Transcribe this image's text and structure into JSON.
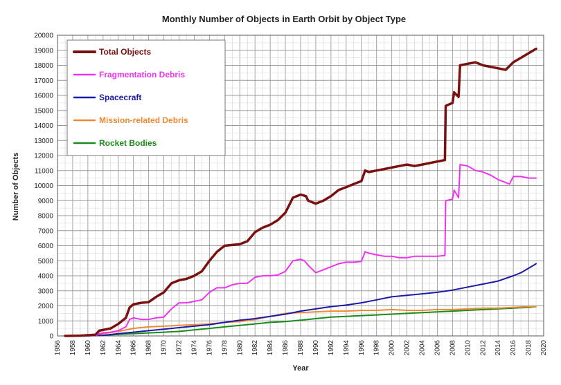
{
  "chart_data": {
    "type": "line",
    "title": "Monthly Number of Objects in Earth Orbit by Object Type",
    "xlabel": "Year",
    "ylabel": "Number of Objects",
    "xlim": [
      1956,
      2020
    ],
    "ylim": [
      0,
      20000
    ],
    "x_ticks": [
      "1956",
      "1958",
      "1960",
      "1962",
      "1964",
      "1966",
      "1968",
      "1970",
      "1972",
      "1974",
      "1976",
      "1978",
      "1980",
      "1982",
      "1984",
      "1986",
      "1988",
      "1990",
      "1992",
      "1994",
      "1996",
      "1998",
      "2000",
      "2002",
      "2004",
      "2006",
      "2008",
      "2010",
      "2012",
      "2014",
      "2016",
      "2018",
      "2020"
    ],
    "y_ticks": [
      "0",
      "1000",
      "2000",
      "3000",
      "4000",
      "5000",
      "6000",
      "7000",
      "8000",
      "9000",
      "10000",
      "11000",
      "12000",
      "13000",
      "14000",
      "15000",
      "16000",
      "17000",
      "18000",
      "19000",
      "20000"
    ],
    "grid": true,
    "legend_position": "top-left",
    "series": [
      {
        "name": "Total Objects",
        "color": "#7a1010",
        "width": 3.5,
        "points": [
          [
            1957,
            0
          ],
          [
            1959,
            20
          ],
          [
            1961,
            80
          ],
          [
            1961.5,
            350
          ],
          [
            1962,
            400
          ],
          [
            1963,
            500
          ],
          [
            1964,
            800
          ],
          [
            1965,
            1200
          ],
          [
            1965.5,
            1900
          ],
          [
            1966,
            2100
          ],
          [
            1967,
            2200
          ],
          [
            1968,
            2250
          ],
          [
            1969,
            2600
          ],
          [
            1970,
            2900
          ],
          [
            1971,
            3500
          ],
          [
            1972,
            3700
          ],
          [
            1973,
            3800
          ],
          [
            1974,
            4000
          ],
          [
            1975,
            4300
          ],
          [
            1976,
            5000
          ],
          [
            1977,
            5600
          ],
          [
            1978,
            6000
          ],
          [
            1979,
            6050
          ],
          [
            1980,
            6100
          ],
          [
            1981,
            6300
          ],
          [
            1982,
            6900
          ],
          [
            1983,
            7200
          ],
          [
            1984,
            7400
          ],
          [
            1985,
            7700
          ],
          [
            1986,
            8200
          ],
          [
            1987,
            9200
          ],
          [
            1988,
            9400
          ],
          [
            1988.7,
            9300
          ],
          [
            1989,
            9000
          ],
          [
            1990,
            8800
          ],
          [
            1991,
            9000
          ],
          [
            1992,
            9300
          ],
          [
            1993,
            9700
          ],
          [
            1994,
            9900
          ],
          [
            1995,
            10100
          ],
          [
            1996,
            10300
          ],
          [
            1996.5,
            11000
          ],
          [
            1997,
            10900
          ],
          [
            1998,
            11000
          ],
          [
            1999,
            11100
          ],
          [
            2000,
            11200
          ],
          [
            2001,
            11300
          ],
          [
            2002,
            11400
          ],
          [
            2003,
            11300
          ],
          [
            2004,
            11400
          ],
          [
            2005,
            11500
          ],
          [
            2006,
            11600
          ],
          [
            2007,
            11700
          ],
          [
            2007.1,
            15300
          ],
          [
            2008,
            15500
          ],
          [
            2008.2,
            16200
          ],
          [
            2008.8,
            15900
          ],
          [
            2009,
            18000
          ],
          [
            2010,
            18100
          ],
          [
            2011,
            18200
          ],
          [
            2012,
            18000
          ],
          [
            2013,
            17900
          ],
          [
            2014,
            17800
          ],
          [
            2015,
            17700
          ],
          [
            2016,
            18200
          ],
          [
            2017,
            18500
          ],
          [
            2018,
            18800
          ],
          [
            2019,
            19100
          ]
        ]
      },
      {
        "name": "Fragmentation Debris",
        "color": "#ee33ee",
        "width": 2,
        "points": [
          [
            1961,
            0
          ],
          [
            1961.5,
            150
          ],
          [
            1962,
            200
          ],
          [
            1963,
            250
          ],
          [
            1964,
            350
          ],
          [
            1965,
            600
          ],
          [
            1965.5,
            1100
          ],
          [
            1966,
            1200
          ],
          [
            1967,
            1100
          ],
          [
            1968,
            1100
          ],
          [
            1969,
            1200
          ],
          [
            1970,
            1250
          ],
          [
            1971,
            1800
          ],
          [
            1972,
            2200
          ],
          [
            1973,
            2200
          ],
          [
            1974,
            2300
          ],
          [
            1975,
            2400
          ],
          [
            1976,
            2900
          ],
          [
            1977,
            3200
          ],
          [
            1978,
            3200
          ],
          [
            1979,
            3400
          ],
          [
            1980,
            3500
          ],
          [
            1981,
            3500
          ],
          [
            1982,
            3900
          ],
          [
            1983,
            4000
          ],
          [
            1984,
            4000
          ],
          [
            1985,
            4050
          ],
          [
            1986,
            4300
          ],
          [
            1987,
            5000
          ],
          [
            1988,
            5100
          ],
          [
            1988.5,
            5000
          ],
          [
            1989,
            4700
          ],
          [
            1990,
            4200
          ],
          [
            1991,
            4400
          ],
          [
            1992,
            4600
          ],
          [
            1993,
            4800
          ],
          [
            1994,
            4900
          ],
          [
            1995,
            4900
          ],
          [
            1996,
            4950
          ],
          [
            1996.5,
            5600
          ],
          [
            1997,
            5500
          ],
          [
            1998,
            5400
          ],
          [
            1999,
            5300
          ],
          [
            2000,
            5300
          ],
          [
            2001,
            5200
          ],
          [
            2002,
            5200
          ],
          [
            2003,
            5300
          ],
          [
            2004,
            5300
          ],
          [
            2005,
            5300
          ],
          [
            2006,
            5300
          ],
          [
            2007,
            5350
          ],
          [
            2007.1,
            9000
          ],
          [
            2008,
            9100
          ],
          [
            2008.2,
            9700
          ],
          [
            2008.8,
            9200
          ],
          [
            2009,
            11400
          ],
          [
            2010,
            11300
          ],
          [
            2011,
            11000
          ],
          [
            2012,
            10900
          ],
          [
            2013,
            10700
          ],
          [
            2014,
            10400
          ],
          [
            2015,
            10200
          ],
          [
            2015.5,
            10100
          ],
          [
            2016,
            10600
          ],
          [
            2017,
            10600
          ],
          [
            2018,
            10500
          ],
          [
            2019,
            10500
          ]
        ]
      },
      {
        "name": "Spacecraft",
        "color": "#1a1aaa",
        "width": 2,
        "points": [
          [
            1957,
            0
          ],
          [
            1960,
            10
          ],
          [
            1962,
            40
          ],
          [
            1964,
            150
          ],
          [
            1966,
            250
          ],
          [
            1968,
            350
          ],
          [
            1970,
            450
          ],
          [
            1972,
            550
          ],
          [
            1974,
            650
          ],
          [
            1976,
            750
          ],
          [
            1978,
            900
          ],
          [
            1980,
            1050
          ],
          [
            1982,
            1150
          ],
          [
            1984,
            1300
          ],
          [
            1986,
            1450
          ],
          [
            1988,
            1650
          ],
          [
            1990,
            1800
          ],
          [
            1992,
            1950
          ],
          [
            1994,
            2050
          ],
          [
            1996,
            2200
          ],
          [
            1998,
            2400
          ],
          [
            2000,
            2600
          ],
          [
            2002,
            2700
          ],
          [
            2004,
            2800
          ],
          [
            2006,
            2900
          ],
          [
            2008,
            3050
          ],
          [
            2010,
            3250
          ],
          [
            2012,
            3450
          ],
          [
            2014,
            3650
          ],
          [
            2016,
            4000
          ],
          [
            2017,
            4200
          ],
          [
            2018,
            4500
          ],
          [
            2019,
            4800
          ]
        ]
      },
      {
        "name": "Mission-related Debris",
        "color": "#f08a30",
        "width": 2,
        "points": [
          [
            1957,
            0
          ],
          [
            1960,
            20
          ],
          [
            1962,
            150
          ],
          [
            1964,
            300
          ],
          [
            1966,
            500
          ],
          [
            1968,
            600
          ],
          [
            1970,
            650
          ],
          [
            1972,
            700
          ],
          [
            1974,
            750
          ],
          [
            1976,
            800
          ],
          [
            1978,
            900
          ],
          [
            1980,
            950
          ],
          [
            1982,
            1100
          ],
          [
            1984,
            1300
          ],
          [
            1986,
            1500
          ],
          [
            1988,
            1550
          ],
          [
            1990,
            1600
          ],
          [
            1992,
            1650
          ],
          [
            1994,
            1650
          ],
          [
            1996,
            1700
          ],
          [
            1998,
            1700
          ],
          [
            2000,
            1750
          ],
          [
            2002,
            1700
          ],
          [
            2004,
            1700
          ],
          [
            2006,
            1750
          ],
          [
            2008,
            1750
          ],
          [
            2010,
            1800
          ],
          [
            2012,
            1850
          ],
          [
            2014,
            1850
          ],
          [
            2016,
            1900
          ],
          [
            2018,
            1950
          ],
          [
            2019,
            1950
          ]
        ]
      },
      {
        "name": "Rocket Bodies",
        "color": "#1a8a1a",
        "width": 2,
        "points": [
          [
            1957,
            0
          ],
          [
            1960,
            10
          ],
          [
            1962,
            40
          ],
          [
            1964,
            100
          ],
          [
            1966,
            150
          ],
          [
            1968,
            200
          ],
          [
            1970,
            250
          ],
          [
            1972,
            300
          ],
          [
            1974,
            400
          ],
          [
            1976,
            500
          ],
          [
            1978,
            600
          ],
          [
            1980,
            700
          ],
          [
            1982,
            800
          ],
          [
            1984,
            900
          ],
          [
            1986,
            950
          ],
          [
            1988,
            1050
          ],
          [
            1990,
            1150
          ],
          [
            1992,
            1250
          ],
          [
            1994,
            1300
          ],
          [
            1996,
            1350
          ],
          [
            1998,
            1400
          ],
          [
            2000,
            1450
          ],
          [
            2002,
            1500
          ],
          [
            2004,
            1550
          ],
          [
            2006,
            1600
          ],
          [
            2008,
            1650
          ],
          [
            2010,
            1700
          ],
          [
            2012,
            1750
          ],
          [
            2014,
            1800
          ],
          [
            2016,
            1850
          ],
          [
            2018,
            1900
          ],
          [
            2019,
            1950
          ]
        ]
      }
    ]
  }
}
